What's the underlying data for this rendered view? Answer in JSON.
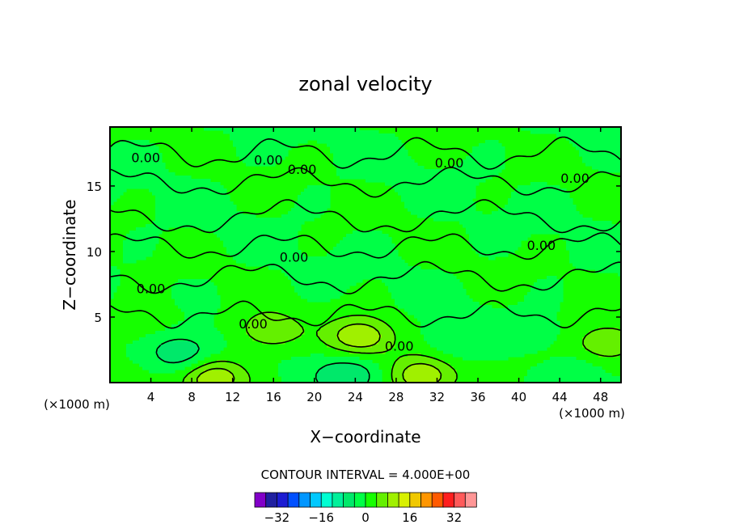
{
  "chart_data": {
    "type": "contour",
    "title": "zonal velocity",
    "xlabel": "X−coordinate",
    "ylabel": "Z−coordinate",
    "x_unit_left": "(×1000 m)",
    "x_unit_right": "(×1000 m)",
    "xlim": [
      0,
      50
    ],
    "ylim": [
      0,
      19.5
    ],
    "xticks": [
      4,
      8,
      12,
      16,
      20,
      24,
      28,
      32,
      36,
      40,
      44,
      48
    ],
    "xtick_labels": [
      "4",
      "8",
      "12",
      "16",
      "20",
      "24",
      "28",
      "32",
      "36",
      "40",
      "44",
      "48"
    ],
    "yticks": [
      5,
      10,
      15
    ],
    "ytick_labels": [
      "5",
      "10",
      "15"
    ],
    "contour_interval_text": "CONTOUR INTERVAL = 4.000E+00",
    "contour_labels": [
      {
        "text": "0.00",
        "x": 3.5,
        "z": 17.2
      },
      {
        "text": "0.00",
        "x": 15.5,
        "z": 17.0
      },
      {
        "text": "0.00",
        "x": 18.8,
        "z": 16.3
      },
      {
        "text": "0.00",
        "x": 33.2,
        "z": 16.8
      },
      {
        "text": "0.00",
        "x": 45.5,
        "z": 15.6
      },
      {
        "text": "0.00",
        "x": 18.0,
        "z": 9.6
      },
      {
        "text": "0.00",
        "x": 42.2,
        "z": 10.5
      },
      {
        "text": "0.00",
        "x": 4.0,
        "z": 7.2
      },
      {
        "text": "0.00",
        "x": 14.0,
        "z": 4.5
      },
      {
        "text": "0.00",
        "x": 28.3,
        "z": 2.8
      }
    ],
    "features": [
      {
        "x": 24.5,
        "z": 3.5,
        "value": 12
      },
      {
        "x": 30.5,
        "z": 0.5,
        "value": 12
      },
      {
        "x": 10.0,
        "z": 0.4,
        "value": 12
      },
      {
        "x": 33.5,
        "z": 3.2,
        "value": -4
      },
      {
        "x": 23.5,
        "z": 0.6,
        "value": -8
      },
      {
        "x": 7.0,
        "z": 2.2,
        "value": -8
      },
      {
        "x": 45.0,
        "z": 0.7,
        "value": -4
      },
      {
        "x": 42.0,
        "z": 3.0,
        "value": -4
      },
      {
        "x": 48.5,
        "z": 3.0,
        "value": 8
      },
      {
        "x": 15.5,
        "z": 4.0,
        "value": 8
      },
      {
        "x": 42.5,
        "z": 2.2,
        "value": 4
      },
      {
        "x": 3.0,
        "z": 4.8,
        "value": 4
      }
    ],
    "colorbar": {
      "levels": [
        -36,
        -32,
        -28,
        -24,
        -20,
        -16,
        -12,
        -8,
        -4,
        0,
        4,
        8,
        12,
        16,
        20,
        24,
        28,
        32,
        36
      ],
      "tick_values": [
        -32,
        -16,
        0,
        16,
        32
      ],
      "tick_labels": [
        "−32",
        "−16",
        "0",
        "16",
        "32"
      ],
      "colors": [
        "#8200c8",
        "#2020a0",
        "#1c1cd2",
        "#0050ff",
        "#0096ff",
        "#00c8ff",
        "#00ffd2",
        "#00f09a",
        "#00e86a",
        "#00ff46",
        "#16ff00",
        "#64f000",
        "#a0f000",
        "#d8f000",
        "#f0c800",
        "#ff9600",
        "#ff5a00",
        "#ff1e1e",
        "#ff5a5a",
        "#ff9696"
      ]
    }
  }
}
